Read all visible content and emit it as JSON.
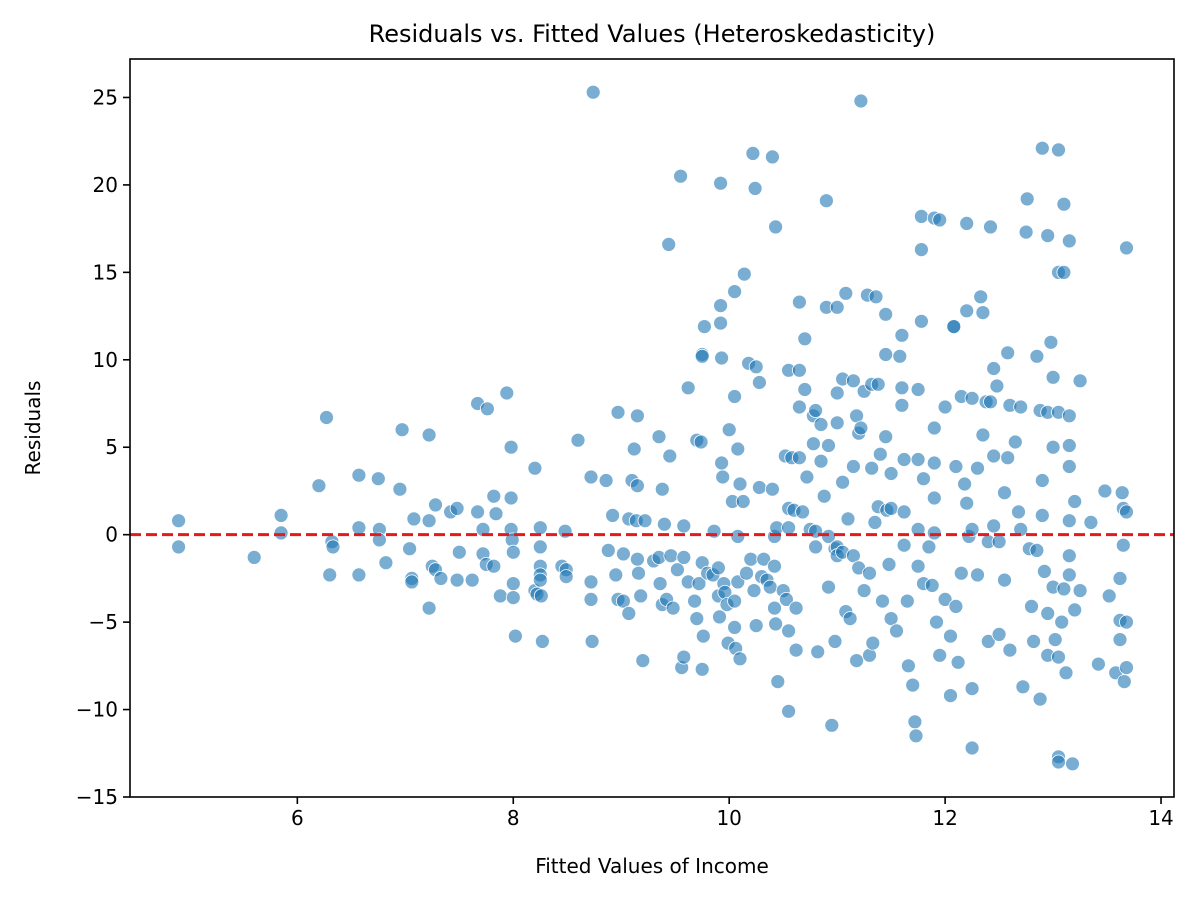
{
  "chart_data": {
    "type": "scatter",
    "title": "Residuals vs. Fitted Values (Heteroskedasticity)",
    "xlabel": "Fitted Values of Income",
    "ylabel": "Residuals",
    "xlim": [
      4.45,
      14.12
    ],
    "ylim": [
      -15,
      27.2
    ],
    "xticks": [
      6,
      8,
      10,
      12,
      14
    ],
    "yticks": [
      -15,
      -10,
      -5,
      0,
      5,
      10,
      15,
      20,
      25
    ],
    "ytick_labels": [
      "−15",
      "−10",
      "−5",
      "0",
      "5",
      "10",
      "15",
      "20",
      "25"
    ],
    "grid": false,
    "legend": "none",
    "reference_line": {
      "y": 0,
      "style": "dashed",
      "color": "#e41a1c"
    },
    "colors": {
      "marker": "#1f77b4",
      "marker_edge": "#ffffff",
      "reference_line": "#e41a1c"
    },
    "marker_opacity": 0.6,
    "points": [
      [
        4.9,
        0.8
      ],
      [
        4.9,
        -0.7
      ],
      [
        5.6,
        -1.3
      ],
      [
        5.85,
        1.1
      ],
      [
        5.85,
        0.1
      ],
      [
        6.2,
        2.8
      ],
      [
        6.27,
        6.7
      ],
      [
        6.3,
        -2.3
      ],
      [
        6.32,
        -0.4
      ],
      [
        6.33,
        -0.7
      ],
      [
        6.57,
        3.4
      ],
      [
        6.57,
        0.4
      ],
      [
        6.57,
        -2.3
      ],
      [
        6.75,
        3.2
      ],
      [
        6.76,
        0.3
      ],
      [
        6.76,
        -0.3
      ],
      [
        6.82,
        -1.6
      ],
      [
        6.95,
        2.6
      ],
      [
        6.97,
        6.0
      ],
      [
        7.04,
        -0.8
      ],
      [
        7.06,
        -2.5
      ],
      [
        7.06,
        -2.7
      ],
      [
        7.08,
        0.9
      ],
      [
        7.22,
        5.7
      ],
      [
        7.22,
        0.8
      ],
      [
        7.22,
        -4.2
      ],
      [
        7.25,
        -1.8
      ],
      [
        7.28,
        1.7
      ],
      [
        7.28,
        -2.0
      ],
      [
        7.33,
        -2.5
      ],
      [
        7.42,
        1.3
      ],
      [
        7.48,
        1.5
      ],
      [
        7.48,
        -2.6
      ],
      [
        7.5,
        -1.0
      ],
      [
        7.62,
        -2.6
      ],
      [
        7.67,
        7.5
      ],
      [
        7.67,
        1.3
      ],
      [
        7.72,
        0.3
      ],
      [
        7.72,
        -1.1
      ],
      [
        7.75,
        -1.7
      ],
      [
        7.76,
        7.2
      ],
      [
        7.82,
        2.2
      ],
      [
        7.82,
        -1.8
      ],
      [
        7.84,
        1.2
      ],
      [
        7.88,
        -3.5
      ],
      [
        7.94,
        8.1
      ],
      [
        7.98,
        2.1
      ],
      [
        7.98,
        5.0
      ],
      [
        7.98,
        0.3
      ],
      [
        7.99,
        -0.3
      ],
      [
        8.0,
        -1.0
      ],
      [
        8.0,
        -2.8
      ],
      [
        8.0,
        -3.6
      ],
      [
        8.02,
        -5.8
      ],
      [
        8.2,
        3.8
      ],
      [
        8.2,
        -3.2
      ],
      [
        8.22,
        -3.4
      ],
      [
        8.25,
        0.4
      ],
      [
        8.25,
        -0.7
      ],
      [
        8.25,
        -1.8
      ],
      [
        8.25,
        -2.3
      ],
      [
        8.25,
        -2.6
      ],
      [
        8.26,
        -3.5
      ],
      [
        8.27,
        -6.1
      ],
      [
        8.45,
        -1.8
      ],
      [
        8.48,
        0.2
      ],
      [
        8.49,
        -2.0
      ],
      [
        8.49,
        -2.4
      ],
      [
        8.6,
        5.4
      ],
      [
        8.72,
        3.3
      ],
      [
        8.72,
        -2.7
      ],
      [
        8.72,
        -3.7
      ],
      [
        8.73,
        -6.1
      ],
      [
        8.74,
        25.3
      ],
      [
        8.86,
        3.1
      ],
      [
        8.88,
        -0.9
      ],
      [
        8.92,
        1.1
      ],
      [
        8.95,
        -2.3
      ],
      [
        8.97,
        7.0
      ],
      [
        8.97,
        -3.7
      ],
      [
        9.02,
        -3.8
      ],
      [
        9.02,
        -1.1
      ],
      [
        9.07,
        0.9
      ],
      [
        9.07,
        -4.5
      ],
      [
        9.1,
        3.1
      ],
      [
        9.12,
        4.9
      ],
      [
        9.14,
        0.8
      ],
      [
        9.15,
        6.8
      ],
      [
        9.15,
        2.8
      ],
      [
        9.15,
        -1.4
      ],
      [
        9.16,
        -2.2
      ],
      [
        9.18,
        -3.5
      ],
      [
        9.2,
        -7.2
      ],
      [
        9.22,
        0.8
      ],
      [
        9.3,
        -1.5
      ],
      [
        9.35,
        5.6
      ],
      [
        9.35,
        -1.3
      ],
      [
        9.36,
        -2.8
      ],
      [
        9.38,
        -4.0
      ],
      [
        9.38,
        2.6
      ],
      [
        9.4,
        0.6
      ],
      [
        9.42,
        -3.7
      ],
      [
        9.44,
        16.6
      ],
      [
        9.45,
        4.5
      ],
      [
        9.46,
        -1.2
      ],
      [
        9.48,
        -4.2
      ],
      [
        9.52,
        -2.0
      ],
      [
        9.55,
        20.5
      ],
      [
        9.56,
        -7.6
      ],
      [
        9.58,
        0.5
      ],
      [
        9.58,
        -7.0
      ],
      [
        9.58,
        -1.3
      ],
      [
        9.62,
        8.4
      ],
      [
        9.62,
        -2.7
      ],
      [
        9.68,
        -3.8
      ],
      [
        9.7,
        5.4
      ],
      [
        9.7,
        -4.8
      ],
      [
        9.72,
        -2.8
      ],
      [
        9.74,
        5.3
      ],
      [
        9.75,
        10.3
      ],
      [
        9.75,
        10.2
      ],
      [
        9.75,
        -1.6
      ],
      [
        9.75,
        -7.7
      ],
      [
        9.76,
        -5.8
      ],
      [
        9.77,
        11.9
      ],
      [
        9.8,
        -2.2
      ],
      [
        9.85,
        -2.3
      ],
      [
        9.86,
        0.2
      ],
      [
        9.9,
        -1.9
      ],
      [
        9.9,
        -3.5
      ],
      [
        9.91,
        -4.7
      ],
      [
        9.92,
        20.1
      ],
      [
        9.92,
        13.1
      ],
      [
        9.92,
        12.1
      ],
      [
        9.93,
        10.1
      ],
      [
        9.93,
        4.1
      ],
      [
        9.94,
        3.3
      ],
      [
        9.95,
        -2.8
      ],
      [
        9.96,
        -3.3
      ],
      [
        9.98,
        -4.0
      ],
      [
        9.99,
        -6.2
      ],
      [
        10.0,
        6.0
      ],
      [
        10.03,
        1.9
      ],
      [
        10.05,
        13.9
      ],
      [
        10.05,
        7.9
      ],
      [
        10.05,
        -3.8
      ],
      [
        10.05,
        -5.3
      ],
      [
        10.06,
        -6.5
      ],
      [
        10.08,
        4.9
      ],
      [
        10.08,
        -0.1
      ],
      [
        10.08,
        -2.7
      ],
      [
        10.1,
        2.9
      ],
      [
        10.1,
        -7.1
      ],
      [
        10.13,
        1.9
      ],
      [
        10.14,
        14.9
      ],
      [
        10.16,
        -2.2
      ],
      [
        10.18,
        9.8
      ],
      [
        10.2,
        -1.4
      ],
      [
        10.22,
        21.8
      ],
      [
        10.23,
        -3.2
      ],
      [
        10.24,
        19.8
      ],
      [
        10.25,
        9.6
      ],
      [
        10.25,
        -5.2
      ],
      [
        10.28,
        8.7
      ],
      [
        10.28,
        2.7
      ],
      [
        10.3,
        -2.4
      ],
      [
        10.32,
        -1.4
      ],
      [
        10.35,
        -2.6
      ],
      [
        10.38,
        -3.0
      ],
      [
        10.4,
        21.6
      ],
      [
        10.4,
        2.6
      ],
      [
        10.42,
        -0.1
      ],
      [
        10.42,
        -1.8
      ],
      [
        10.42,
        -4.2
      ],
      [
        10.43,
        17.6
      ],
      [
        10.43,
        -5.1
      ],
      [
        10.44,
        0.4
      ],
      [
        10.45,
        -8.4
      ],
      [
        10.5,
        -3.2
      ],
      [
        10.52,
        4.5
      ],
      [
        10.53,
        -3.7
      ],
      [
        10.55,
        9.4
      ],
      [
        10.55,
        1.5
      ],
      [
        10.55,
        0.4
      ],
      [
        10.55,
        -5.5
      ],
      [
        10.55,
        -10.1
      ],
      [
        10.58,
        4.4
      ],
      [
        10.6,
        1.4
      ],
      [
        10.62,
        -4.2
      ],
      [
        10.62,
        -6.6
      ],
      [
        10.65,
        13.3
      ],
      [
        10.65,
        9.4
      ],
      [
        10.65,
        7.3
      ],
      [
        10.65,
        4.4
      ],
      [
        10.68,
        1.3
      ],
      [
        10.7,
        11.2
      ],
      [
        10.7,
        8.3
      ],
      [
        10.72,
        3.3
      ],
      [
        10.75,
        0.3
      ],
      [
        10.78,
        6.8
      ],
      [
        10.78,
        5.2
      ],
      [
        10.8,
        7.1
      ],
      [
        10.8,
        0.2
      ],
      [
        10.8,
        -0.7
      ],
      [
        10.82,
        -6.7
      ],
      [
        10.85,
        6.3
      ],
      [
        10.85,
        4.2
      ],
      [
        10.88,
        2.2
      ],
      [
        10.9,
        19.1
      ],
      [
        10.9,
        13.0
      ],
      [
        10.92,
        5.1
      ],
      [
        10.92,
        -0.1
      ],
      [
        10.92,
        -3.0
      ],
      [
        10.95,
        -10.9
      ],
      [
        10.98,
        -0.8
      ],
      [
        10.98,
        -6.1
      ],
      [
        11.0,
        13.0
      ],
      [
        11.0,
        8.1
      ],
      [
        11.0,
        6.4
      ],
      [
        11.0,
        -0.7
      ],
      [
        11.0,
        -1.2
      ],
      [
        11.05,
        8.9
      ],
      [
        11.05,
        3.0
      ],
      [
        11.05,
        -1.0
      ],
      [
        11.08,
        13.8
      ],
      [
        11.08,
        -4.4
      ],
      [
        11.1,
        0.9
      ],
      [
        11.12,
        -4.8
      ],
      [
        11.15,
        8.8
      ],
      [
        11.15,
        3.9
      ],
      [
        11.15,
        -1.2
      ],
      [
        11.18,
        6.8
      ],
      [
        11.18,
        -7.2
      ],
      [
        11.2,
        5.8
      ],
      [
        11.2,
        -1.9
      ],
      [
        11.22,
        24.8
      ],
      [
        11.22,
        6.1
      ],
      [
        11.25,
        8.2
      ],
      [
        11.25,
        -3.2
      ],
      [
        11.28,
        13.7
      ],
      [
        11.3,
        -2.2
      ],
      [
        11.3,
        -6.9
      ],
      [
        11.32,
        8.6
      ],
      [
        11.32,
        3.8
      ],
      [
        11.33,
        -6.2
      ],
      [
        11.35,
        0.7
      ],
      [
        11.36,
        13.6
      ],
      [
        11.38,
        8.6
      ],
      [
        11.38,
        1.6
      ],
      [
        11.4,
        4.6
      ],
      [
        11.42,
        -3.8
      ],
      [
        11.45,
        12.6
      ],
      [
        11.45,
        10.3
      ],
      [
        11.45,
        5.6
      ],
      [
        11.46,
        1.4
      ],
      [
        11.48,
        -1.7
      ],
      [
        11.5,
        3.5
      ],
      [
        11.5,
        1.5
      ],
      [
        11.5,
        -4.8
      ],
      [
        11.55,
        -5.5
      ],
      [
        11.58,
        10.2
      ],
      [
        11.6,
        11.4
      ],
      [
        11.6,
        8.4
      ],
      [
        11.6,
        7.4
      ],
      [
        11.62,
        4.3
      ],
      [
        11.62,
        1.3
      ],
      [
        11.62,
        -0.6
      ],
      [
        11.65,
        -3.8
      ],
      [
        11.66,
        -7.5
      ],
      [
        11.7,
        -8.6
      ],
      [
        11.72,
        -10.7
      ],
      [
        11.73,
        -11.5
      ],
      [
        11.75,
        8.3
      ],
      [
        11.75,
        4.3
      ],
      [
        11.75,
        0.3
      ],
      [
        11.75,
        -1.8
      ],
      [
        11.78,
        18.2
      ],
      [
        11.78,
        16.3
      ],
      [
        11.78,
        12.2
      ],
      [
        11.8,
        3.2
      ],
      [
        11.8,
        -2.8
      ],
      [
        11.85,
        -0.7
      ],
      [
        11.88,
        -2.9
      ],
      [
        11.9,
        18.1
      ],
      [
        11.9,
        6.1
      ],
      [
        11.9,
        4.1
      ],
      [
        11.9,
        2.1
      ],
      [
        11.9,
        0.1
      ],
      [
        11.92,
        -5.0
      ],
      [
        11.95,
        -6.9
      ],
      [
        11.95,
        18.0
      ],
      [
        12.0,
        7.3
      ],
      [
        12.0,
        -3.7
      ],
      [
        12.05,
        -5.8
      ],
      [
        12.05,
        -9.2
      ],
      [
        12.08,
        11.9
      ],
      [
        12.08,
        11.9
      ],
      [
        12.1,
        3.9
      ],
      [
        12.1,
        -4.1
      ],
      [
        12.12,
        -7.3
      ],
      [
        12.15,
        7.9
      ],
      [
        12.15,
        -2.2
      ],
      [
        12.18,
        2.9
      ],
      [
        12.2,
        17.8
      ],
      [
        12.2,
        12.8
      ],
      [
        12.2,
        1.8
      ],
      [
        12.22,
        -0.1
      ],
      [
        12.25,
        7.8
      ],
      [
        12.25,
        0.3
      ],
      [
        12.25,
        -8.8
      ],
      [
        12.25,
        -12.2
      ],
      [
        12.3,
        3.8
      ],
      [
        12.3,
        -2.3
      ],
      [
        12.33,
        13.6
      ],
      [
        12.35,
        12.7
      ],
      [
        12.35,
        5.7
      ],
      [
        12.38,
        7.6
      ],
      [
        12.4,
        -0.4
      ],
      [
        12.4,
        -6.1
      ],
      [
        12.42,
        17.6
      ],
      [
        12.42,
        7.6
      ],
      [
        12.45,
        9.5
      ],
      [
        12.45,
        4.5
      ],
      [
        12.45,
        0.5
      ],
      [
        12.48,
        8.5
      ],
      [
        12.5,
        -5.7
      ],
      [
        12.5,
        -0.4
      ],
      [
        12.55,
        2.4
      ],
      [
        12.55,
        -2.6
      ],
      [
        12.58,
        10.4
      ],
      [
        12.58,
        4.4
      ],
      [
        12.6,
        7.4
      ],
      [
        12.6,
        -6.6
      ],
      [
        12.65,
        5.3
      ],
      [
        12.68,
        1.3
      ],
      [
        12.7,
        7.3
      ],
      [
        12.7,
        0.3
      ],
      [
        12.72,
        -8.7
      ],
      [
        12.75,
        17.3
      ],
      [
        12.76,
        19.2
      ],
      [
        12.78,
        -0.8
      ],
      [
        12.8,
        -4.1
      ],
      [
        12.82,
        -6.1
      ],
      [
        12.85,
        10.2
      ],
      [
        12.85,
        -0.9
      ],
      [
        12.88,
        7.1
      ],
      [
        12.88,
        -9.4
      ],
      [
        12.9,
        22.1
      ],
      [
        12.9,
        3.1
      ],
      [
        12.9,
        1.1
      ],
      [
        12.92,
        -2.1
      ],
      [
        12.95,
        17.1
      ],
      [
        12.95,
        7.0
      ],
      [
        12.95,
        -4.5
      ],
      [
        12.95,
        -6.9
      ],
      [
        12.98,
        11.0
      ],
      [
        13.0,
        9.0
      ],
      [
        13.0,
        5.0
      ],
      [
        13.0,
        -3.0
      ],
      [
        13.02,
        -6.0
      ],
      [
        13.05,
        22.0
      ],
      [
        13.05,
        15.0
      ],
      [
        13.05,
        7.0
      ],
      [
        13.05,
        -7.0
      ],
      [
        13.05,
        -12.7
      ],
      [
        13.05,
        -13.0
      ],
      [
        13.08,
        -5.0
      ],
      [
        13.1,
        18.9
      ],
      [
        13.1,
        15.0
      ],
      [
        13.1,
        -3.1
      ],
      [
        13.12,
        -7.9
      ],
      [
        13.15,
        16.8
      ],
      [
        13.15,
        6.8
      ],
      [
        13.15,
        5.1
      ],
      [
        13.15,
        3.9
      ],
      [
        13.15,
        0.8
      ],
      [
        13.15,
        -1.2
      ],
      [
        13.15,
        -2.3
      ],
      [
        13.18,
        -13.1
      ],
      [
        13.2,
        1.9
      ],
      [
        13.2,
        -4.3
      ],
      [
        13.25,
        8.8
      ],
      [
        13.25,
        -3.2
      ],
      [
        13.35,
        0.7
      ],
      [
        13.42,
        -7.4
      ],
      [
        13.48,
        2.5
      ],
      [
        13.52,
        -3.5
      ],
      [
        13.58,
        -7.9
      ],
      [
        13.62,
        -2.5
      ],
      [
        13.62,
        -6.0
      ],
      [
        13.62,
        -4.9
      ],
      [
        13.64,
        2.4
      ],
      [
        13.65,
        1.5
      ],
      [
        13.65,
        -0.6
      ],
      [
        13.66,
        -8.4
      ],
      [
        13.68,
        16.4
      ],
      [
        13.68,
        1.3
      ],
      [
        13.68,
        -5.0
      ],
      [
        13.68,
        -7.6
      ]
    ]
  }
}
